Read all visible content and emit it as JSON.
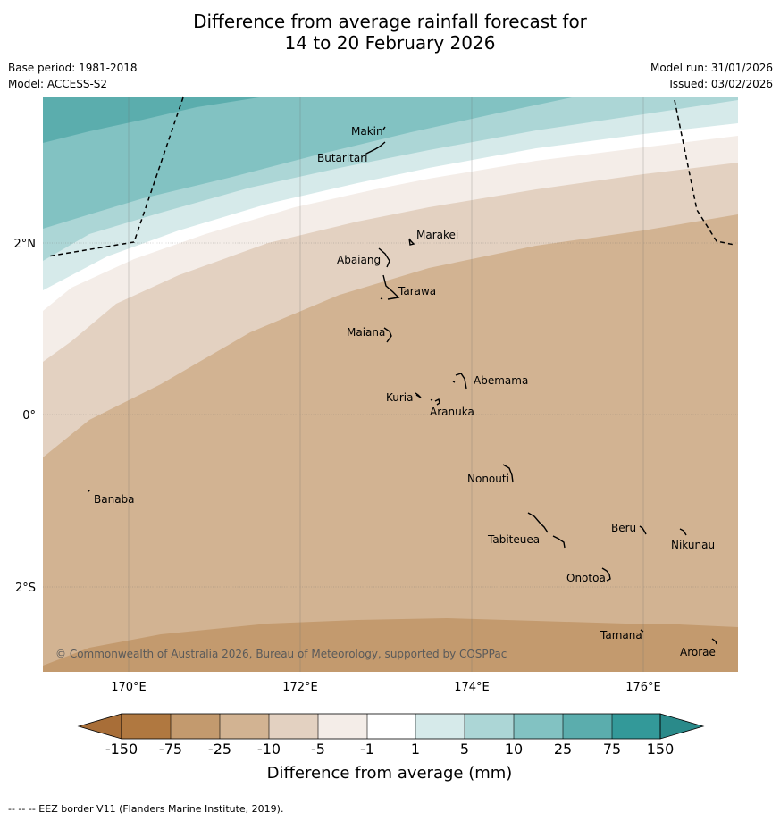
{
  "header": {
    "title_line1": "Difference from average rainfall forecast for",
    "title_line2": "14 to 20 February 2026",
    "base_period": "Base period: 1981-2018",
    "model": "Model: ACCESS-S2",
    "model_run": "Model run: 31/01/2026",
    "issued": "Issued: 03/02/2026"
  },
  "map": {
    "lon_ticks": [
      "170°E",
      "172°E",
      "174°E",
      "176°E"
    ],
    "lat_ticks": [
      "2°N",
      "0°",
      "2°S"
    ],
    "copyright": "© Commonwealth of Australia 2026, Bureau of Meteorology, supported by COSPPac",
    "islands": [
      {
        "name": "Makin"
      },
      {
        "name": "Butaritari"
      },
      {
        "name": "Marakei"
      },
      {
        "name": "Abaiang"
      },
      {
        "name": "Tarawa"
      },
      {
        "name": "Maiana"
      },
      {
        "name": "Abemama"
      },
      {
        "name": "Kuria"
      },
      {
        "name": "Aranuka"
      },
      {
        "name": "Banaba"
      },
      {
        "name": "Nonouti"
      },
      {
        "name": "Beru"
      },
      {
        "name": "Nikunau"
      },
      {
        "name": "Tabiteuea"
      },
      {
        "name": "Onotoa"
      },
      {
        "name": "Tamana"
      },
      {
        "name": "Arorae"
      }
    ]
  },
  "legend": {
    "title": "Difference from average (mm)",
    "ticks": [
      "-150",
      "-75",
      "-25",
      "-10",
      "-5",
      "-1",
      "1",
      "5",
      "10",
      "25",
      "75",
      "150"
    ],
    "colors": {
      "below_min": "#a86e38",
      "b1": "#b07840",
      "b2": "#c39a6e",
      "b3": "#d2b392",
      "b4": "#e3d1c1",
      "b5": "#f4ede8",
      "b6": "#ffffff",
      "b7": "#d6eaea",
      "b8": "#acd6d6",
      "b9": "#82c2c2",
      "b10": "#5badad",
      "b11": "#339999",
      "above_max": "#2a8a8a"
    }
  },
  "footer": {
    "eez_note": "--  --  -- EEZ border V11 (Flanders Marine Institute, 2019)."
  }
}
